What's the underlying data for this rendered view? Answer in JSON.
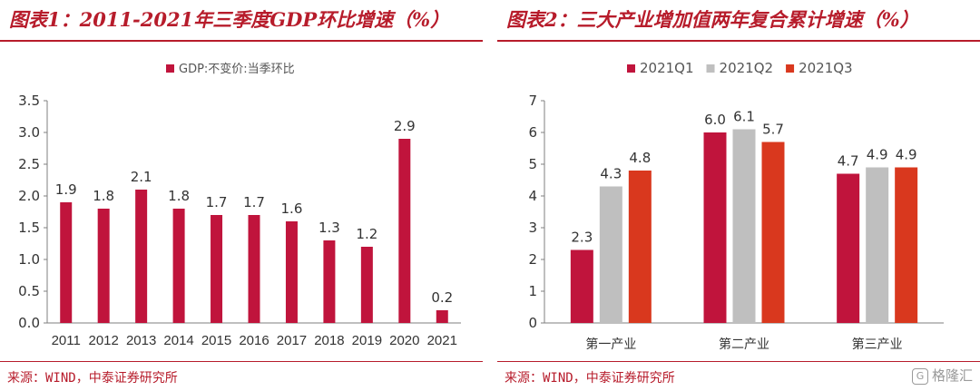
{
  "panels": [
    {
      "title": "图表1：2011-2021年三季度GDP环比增速（%）",
      "source": "来源：WIND，中泰证券研究所"
    },
    {
      "title": "图表2：三大产业增加值两年复合累计增速（%）",
      "source": "来源：WIND，中泰证券研究所"
    }
  ],
  "watermark": {
    "text": "格隆汇",
    "icon": "gelonghui-logo-icon"
  },
  "colors": {
    "title": "#b71c2b",
    "series1": "#c0143c",
    "series2": "#bfbfbf",
    "series3": "#d9381e"
  },
  "chart_data": [
    {
      "type": "bar",
      "title": "",
      "legend_position": "top",
      "categories": [
        "2011",
        "2012",
        "2013",
        "2014",
        "2015",
        "2016",
        "2017",
        "2018",
        "2019",
        "2020",
        "2021"
      ],
      "series": [
        {
          "name": "GDP:不变价:当季环比",
          "values": [
            1.9,
            1.8,
            2.1,
            1.8,
            1.7,
            1.7,
            1.6,
            1.3,
            1.2,
            2.9,
            0.2
          ]
        }
      ],
      "data_labels": [
        "1.9",
        "1.8",
        "2.1",
        "1.8",
        "1.7",
        "1.7",
        "1.6",
        "1.3",
        "1.2",
        "2.9",
        "0.2"
      ],
      "ylim": [
        0,
        3.5
      ],
      "yticks": [
        "0.0",
        "0.5",
        "1.0",
        "1.5",
        "2.0",
        "2.5",
        "3.0",
        "3.5"
      ],
      "grid": false,
      "xlabel": "",
      "ylabel": ""
    },
    {
      "type": "bar",
      "title": "",
      "legend_position": "top",
      "categories": [
        "第一产业",
        "第二产业",
        "第三产业"
      ],
      "series": [
        {
          "name": "2021Q1",
          "values": [
            2.3,
            6.0,
            4.7
          ]
        },
        {
          "name": "2021Q2",
          "values": [
            4.3,
            6.1,
            4.9
          ]
        },
        {
          "name": "2021Q3",
          "values": [
            4.8,
            5.7,
            4.9
          ]
        }
      ],
      "data_labels": [
        [
          "2.3",
          "6.0",
          "4.7"
        ],
        [
          "4.3",
          "6.1",
          "4.9"
        ],
        [
          "4.8",
          "5.7",
          "4.9"
        ]
      ],
      "ylim": [
        0,
        7
      ],
      "yticks": [
        "0",
        "1",
        "2",
        "3",
        "4",
        "5",
        "6",
        "7"
      ],
      "grid": false,
      "xlabel": "",
      "ylabel": ""
    }
  ]
}
